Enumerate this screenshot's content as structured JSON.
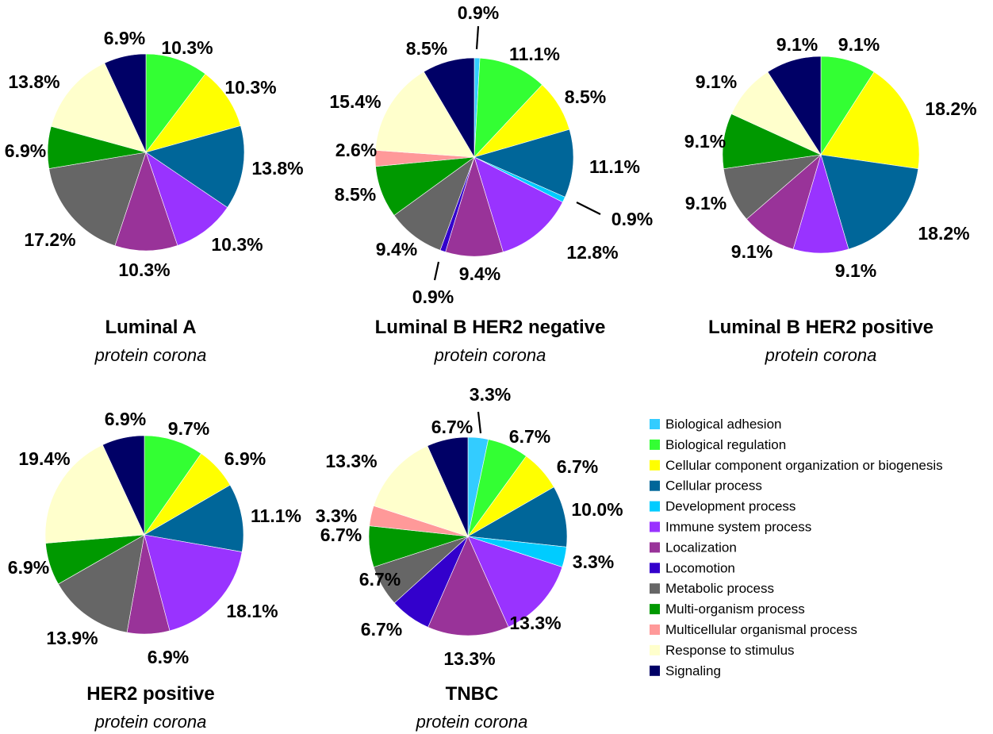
{
  "legend": {
    "items": [
      {
        "name": "Biological adhesion",
        "color": "#33CCFF"
      },
      {
        "name": "Biological regulation",
        "color": "#33FF33"
      },
      {
        "name": "Cellular component organization or biogenesis",
        "color": "#FFFF00"
      },
      {
        "name": "Cellular process",
        "color": "#006699"
      },
      {
        "name": "Development process",
        "color": "#00CCFF"
      },
      {
        "name": "Immune system process",
        "color": "#9933FF"
      },
      {
        "name": "Localization",
        "color": "#993399"
      },
      {
        "name": "Locomotion",
        "color": "#3300CC"
      },
      {
        "name": "Metabolic process",
        "color": "#666666"
      },
      {
        "name": "Multi-organism process",
        "color": "#009900"
      },
      {
        "name": "Multicellular organismal process",
        "color": "#FF9999"
      },
      {
        "name": "Response to stimulus",
        "color": "#FFFFCC"
      },
      {
        "name": "Signaling",
        "color": "#000066"
      }
    ]
  },
  "chart_data": [
    {
      "type": "pie",
      "title": "Luminal A",
      "subtitle": "protein corona",
      "slices": [
        {
          "category": "Biological regulation",
          "value": 10.3,
          "label": "10.3%"
        },
        {
          "category": "Cellular component organization or biogenesis",
          "value": 10.3,
          "label": "10.3%"
        },
        {
          "category": "Cellular process",
          "value": 13.8,
          "label": "13.8%"
        },
        {
          "category": "Immune system process",
          "value": 10.3,
          "label": "10.3%"
        },
        {
          "category": "Localization",
          "value": 10.3,
          "label": "10.3%"
        },
        {
          "category": "Metabolic process",
          "value": 17.2,
          "label": "17.2%"
        },
        {
          "category": "Multi-organism process",
          "value": 6.9,
          "label": "6.9%"
        },
        {
          "category": "Response to stimulus",
          "value": 13.8,
          "label": "13.8%"
        },
        {
          "category": "Signaling",
          "value": 6.9,
          "label": "6.9%"
        }
      ]
    },
    {
      "type": "pie",
      "title": "Luminal B HER2 negative",
      "subtitle": "protein corona",
      "slices": [
        {
          "category": "Biological adhesion",
          "value": 0.9,
          "label": "0.9%"
        },
        {
          "category": "Biological regulation",
          "value": 11.1,
          "label": "11.1%"
        },
        {
          "category": "Cellular component organization or biogenesis",
          "value": 8.5,
          "label": "8.5%"
        },
        {
          "category": "Cellular process",
          "value": 11.1,
          "label": "11.1%"
        },
        {
          "category": "Development process",
          "value": 0.9,
          "label": "0.9%"
        },
        {
          "category": "Immune system process",
          "value": 12.8,
          "label": "12.8%"
        },
        {
          "category": "Localization",
          "value": 9.4,
          "label": "9.4%"
        },
        {
          "category": "Locomotion",
          "value": 0.9,
          "label": "0.9%"
        },
        {
          "category": "Metabolic process",
          "value": 9.4,
          "label": "9.4%"
        },
        {
          "category": "Multi-organism process",
          "value": 8.5,
          "label": "8.5%"
        },
        {
          "category": "Multicellular organismal process",
          "value": 2.6,
          "label": "2.6%"
        },
        {
          "category": "Response to stimulus",
          "value": 15.4,
          "label": "15.4%"
        },
        {
          "category": "Signaling",
          "value": 8.5,
          "label": "8.5%"
        }
      ]
    },
    {
      "type": "pie",
      "title": "Luminal B HER2 positive",
      "subtitle": "protein corona",
      "slices": [
        {
          "category": "Biological regulation",
          "value": 9.1,
          "label": "9.1%"
        },
        {
          "category": "Cellular component organization or biogenesis",
          "value": 18.2,
          "label": "18.2%"
        },
        {
          "category": "Cellular process",
          "value": 18.2,
          "label": "18.2%"
        },
        {
          "category": "Immune system process",
          "value": 9.1,
          "label": "9.1%"
        },
        {
          "category": "Localization",
          "value": 9.1,
          "label": "9.1%"
        },
        {
          "category": "Metabolic process",
          "value": 9.1,
          "label": "9.1%"
        },
        {
          "category": "Multi-organism process",
          "value": 9.1,
          "label": "9.1%"
        },
        {
          "category": "Response to stimulus",
          "value": 9.1,
          "label": "9.1%"
        },
        {
          "category": "Signaling",
          "value": 9.1,
          "label": "9.1%"
        }
      ]
    },
    {
      "type": "pie",
      "title": "HER2 positive",
      "subtitle": "protein corona",
      "slices": [
        {
          "category": "Biological regulation",
          "value": 9.7,
          "label": "9.7%"
        },
        {
          "category": "Cellular component organization or biogenesis",
          "value": 6.9,
          "label": "6.9%"
        },
        {
          "category": "Cellular process",
          "value": 11.1,
          "label": "11.1%"
        },
        {
          "category": "Immune system process",
          "value": 18.1,
          "label": "18.1%"
        },
        {
          "category": "Localization",
          "value": 6.9,
          "label": "6.9%"
        },
        {
          "category": "Metabolic process",
          "value": 13.9,
          "label": "13.9%"
        },
        {
          "category": "Multi-organism process",
          "value": 6.9,
          "label": "6.9%"
        },
        {
          "category": "Response to stimulus",
          "value": 19.4,
          "label": "19.4%"
        },
        {
          "category": "Signaling",
          "value": 6.9,
          "label": "6.9%"
        }
      ]
    },
    {
      "type": "pie",
      "title": "TNBC",
      "subtitle": "protein corona",
      "slices": [
        {
          "category": "Biological adhesion",
          "value": 3.3,
          "label": "3.3%"
        },
        {
          "category": "Biological regulation",
          "value": 6.7,
          "label": "6.7%"
        },
        {
          "category": "Cellular component organization or biogenesis",
          "value": 6.7,
          "label": "6.7%"
        },
        {
          "category": "Cellular process",
          "value": 10.0,
          "label": "10.0%"
        },
        {
          "category": "Development process",
          "value": 3.3,
          "label": "3.3%"
        },
        {
          "category": "Immune system process",
          "value": 13.3,
          "label": "13.3%"
        },
        {
          "category": "Localization",
          "value": 13.3,
          "label": "13.3%"
        },
        {
          "category": "Locomotion",
          "value": 6.7,
          "label": "6.7%"
        },
        {
          "category": "Metabolic process",
          "value": 6.7,
          "label": "6.7%"
        },
        {
          "category": "Multi-organism process",
          "value": 6.7,
          "label": "6.7%"
        },
        {
          "category": "Multicellular organismal process",
          "value": 3.3,
          "label": "3.3%"
        },
        {
          "category": "Response to stimulus",
          "value": 13.3,
          "label": "13.3%"
        },
        {
          "category": "Signaling",
          "value": 6.7,
          "label": "6.7%"
        }
      ]
    }
  ]
}
